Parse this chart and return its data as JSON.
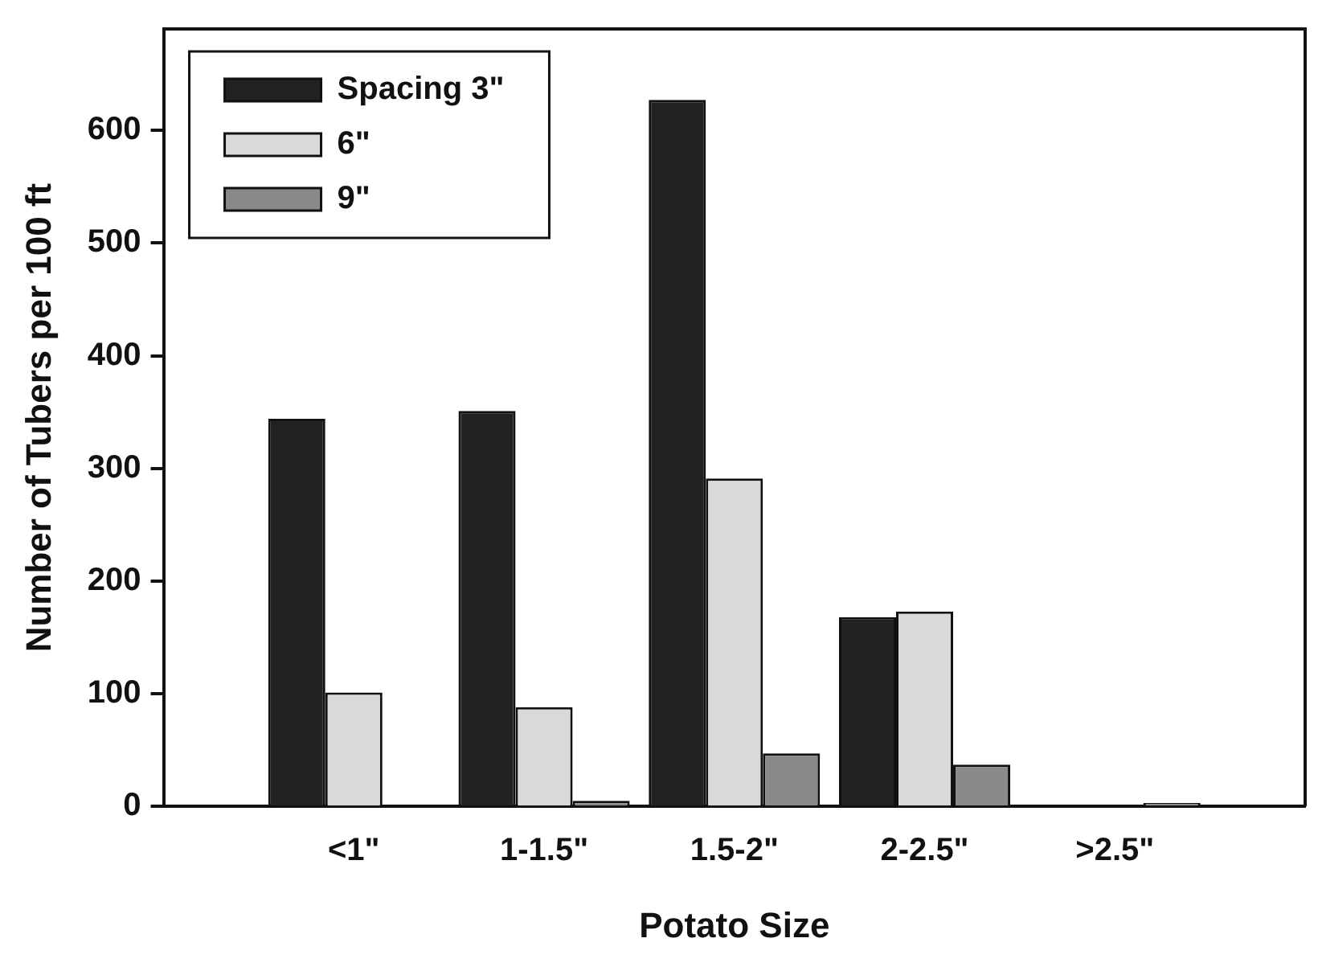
{
  "chart_data": {
    "type": "bar",
    "xlabel": "Potato Size",
    "ylabel": "Number of Tubers per 100 ft",
    "categories": [
      null,
      "<1\"",
      "1-1.5\"",
      "1.5-2\"",
      "2-2.5\"",
      ">2.5\"",
      null
    ],
    "series": [
      {
        "name": "Spacing 3\"",
        "color": "#222222",
        "values": [
          null,
          344,
          351,
          627,
          168,
          null,
          null
        ]
      },
      {
        "name": "6\"",
        "color": "#d9d9d9",
        "values": [
          null,
          101,
          88,
          291,
          173,
          null,
          null
        ]
      },
      {
        "name": "9\"",
        "color": "#8a8a8a",
        "values": [
          null,
          0,
          5,
          47,
          37,
          3,
          null
        ]
      }
    ],
    "ylim": [
      0,
      690
    ],
    "yticks": [
      0,
      100,
      200,
      300,
      400,
      500,
      600
    ],
    "grid": false,
    "legend": "top left"
  }
}
